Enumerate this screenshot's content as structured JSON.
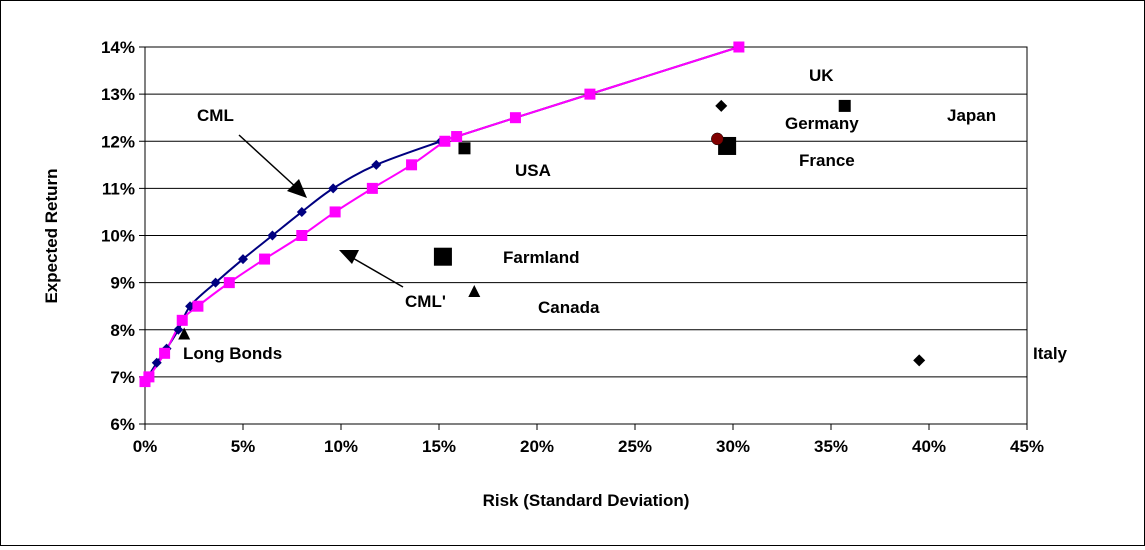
{
  "chart_data": {
    "type": "scatter",
    "xlabel": "Risk (Standard Deviation)",
    "ylabel": "Expected Return",
    "xlim": [
      0,
      45
    ],
    "ylim": [
      6,
      14
    ],
    "x_ticks": [
      "0%",
      "5%",
      "10%",
      "15%",
      "20%",
      "25%",
      "30%",
      "35%",
      "40%",
      "45%"
    ],
    "y_ticks": [
      "6%",
      "7%",
      "8%",
      "9%",
      "10%",
      "11%",
      "12%",
      "13%",
      "14%"
    ],
    "grid": "horizontal",
    "series": [
      {
        "name": "CML",
        "color": "#000080",
        "marker": "diamond",
        "points": [
          [
            0,
            6.9
          ],
          [
            0.6,
            7.3
          ],
          [
            1.1,
            7.6
          ],
          [
            1.7,
            8.0
          ],
          [
            2.3,
            8.5
          ],
          [
            3.6,
            9.0
          ],
          [
            5.0,
            9.5
          ],
          [
            6.5,
            10.0
          ],
          [
            8.0,
            10.5
          ],
          [
            9.6,
            11.0
          ],
          [
            11.8,
            11.5
          ],
          [
            15.1,
            12.0
          ],
          [
            15.9,
            12.1
          ],
          [
            18.9,
            12.5
          ],
          [
            22.7,
            13.0
          ],
          [
            30.3,
            14.0
          ]
        ]
      },
      {
        "name": "CML'",
        "color": "#ff00ff",
        "marker": "square",
        "points": [
          [
            0,
            6.9
          ],
          [
            0.2,
            7.0
          ],
          [
            1.0,
            7.5
          ],
          [
            1.9,
            8.2
          ],
          [
            2.7,
            8.5
          ],
          [
            4.3,
            9.0
          ],
          [
            6.1,
            9.5
          ],
          [
            8.0,
            10.0
          ],
          [
            9.7,
            10.5
          ],
          [
            11.6,
            11.0
          ],
          [
            13.6,
            11.5
          ],
          [
            15.3,
            12.0
          ],
          [
            15.9,
            12.1
          ],
          [
            18.9,
            12.5
          ],
          [
            22.7,
            13.0
          ],
          [
            30.3,
            14.0
          ]
        ]
      }
    ],
    "points": [
      {
        "label": "UK",
        "x": 30.3,
        "y": 14.0,
        "marker": "none"
      },
      {
        "label": "Germany",
        "x": 29.4,
        "y": 12.75,
        "marker": "diamond"
      },
      {
        "label": "Japan",
        "x": 35.7,
        "y": 12.75,
        "marker": "square"
      },
      {
        "label": "USA",
        "x": 16.3,
        "y": 11.85,
        "marker": "square"
      },
      {
        "label": "France",
        "x": 29.7,
        "y": 11.9,
        "marker": "square-large"
      },
      {
        "label": "",
        "x": 29.2,
        "y": 12.05,
        "marker": "circle",
        "color": "#800000"
      },
      {
        "label": "Farmland",
        "x": 15.2,
        "y": 9.55,
        "marker": "square-large"
      },
      {
        "label": "Canada",
        "x": 16.8,
        "y": 8.8,
        "marker": "triangle"
      },
      {
        "label": "Long Bonds",
        "x": 2.0,
        "y": 7.9,
        "marker": "triangle"
      },
      {
        "label": "Italy",
        "x": 39.5,
        "y": 7.35,
        "marker": "diamond"
      }
    ],
    "annotations": [
      {
        "text": "CML",
        "x": 6.4,
        "y": 12.55
      },
      {
        "text": "CML'",
        "x": 13.0,
        "y": 8.45
      }
    ]
  }
}
